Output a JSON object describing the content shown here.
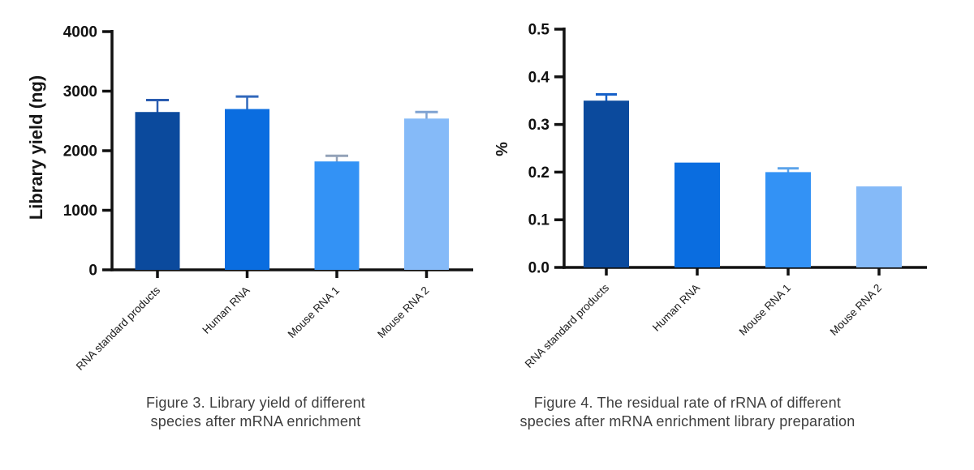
{
  "style": {
    "background": "#ffffff",
    "axis_color": "#111111",
    "tick_label_color": "#111111",
    "category_label_color": "#1a1a1a",
    "caption_color": "#3e3e3e"
  },
  "chart_data": [
    {
      "type": "bar",
      "title": "",
      "xlabel": "",
      "ylabel": "Library yield (ng)",
      "categories": [
        "RNA standard products",
        "Human RNA",
        "Mouse RNA 1",
        "Mouse RNA 2"
      ],
      "values": [
        2650,
        2700,
        1820,
        2540
      ],
      "errors_plus": [
        200,
        210,
        95,
        110
      ],
      "bar_colors": [
        "#0b4a9d",
        "#0a6de0",
        "#3392f5",
        "#85baf8"
      ],
      "error_colors": [
        "#2a5cb0",
        "#3168bb",
        "#93a2b8",
        "#7fa3d2"
      ],
      "ylim": [
        0,
        4000
      ],
      "yticks": [
        0,
        1000,
        2000,
        3000,
        4000
      ],
      "ytick_labels": [
        "0",
        "1000",
        "2000",
        "3000",
        "4000"
      ],
      "grid": false,
      "legend": null,
      "caption": [
        "Figure 3. Library yield of different",
        "species after mRNA enrichment"
      ]
    },
    {
      "type": "bar",
      "title": "",
      "xlabel": "",
      "ylabel": "%",
      "categories": [
        "RNA standard products",
        "Human RNA",
        "Mouse RNA 1",
        "Mouse RNA 2"
      ],
      "values": [
        0.35,
        0.22,
        0.2,
        0.17
      ],
      "errors_plus": [
        0.013,
        0,
        0.008,
        0
      ],
      "bar_colors": [
        "#0b4a9d",
        "#0a6de0",
        "#3392f5",
        "#85baf8"
      ],
      "error_colors": [
        "#1560c8",
        null,
        "#5ba3ea",
        null
      ],
      "ylim": [
        0,
        0.5
      ],
      "yticks": [
        0,
        0.1,
        0.2,
        0.3,
        0.4,
        0.5
      ],
      "ytick_labels": [
        "0.0",
        "0.1",
        "0.2",
        "0.3",
        "0.4",
        "0.5"
      ],
      "grid": false,
      "legend": null,
      "caption": [
        "Figure 4. The residual rate of rRNA of different",
        "species after mRNA enrichment library preparation"
      ]
    }
  ]
}
